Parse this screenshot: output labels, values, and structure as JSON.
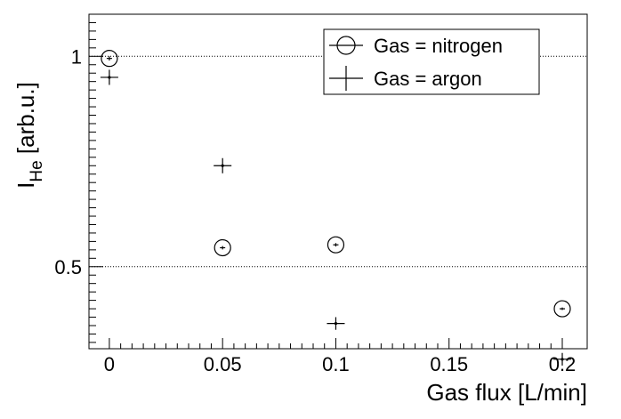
{
  "chart_data": {
    "type": "scatter",
    "title": "",
    "xlabel": "Gas flux [L/min]",
    "ylabel": {
      "main": "I",
      "sub": "He",
      "unit": " [arb.u.]"
    },
    "xlim": [
      -0.009,
      0.211
    ],
    "ylim": [
      0.305,
      1.1
    ],
    "x_ticks": [
      0,
      0.05,
      0.1,
      0.15,
      0.2
    ],
    "x_tick_labels": [
      "0",
      "0.05",
      "0.1",
      "0.15",
      "0.2"
    ],
    "y_ticks": [
      0.5,
      1
    ],
    "y_tick_labels": [
      "0.5",
      "1"
    ],
    "grid_y": [
      0.5,
      1.0
    ],
    "legend_position": "top-right",
    "series": [
      {
        "name": "Gas = nitrogen",
        "marker": "open-circle",
        "x": [
          0,
          0.05,
          0.1,
          0.2
        ],
        "y": [
          0.995,
          0.545,
          0.552,
          0.4
        ],
        "yerr": [
          0.005,
          0.004,
          0.004,
          0.003
        ]
      },
      {
        "name": "Gas = argon",
        "marker": "cross",
        "x": [
          0,
          0.05,
          0.1,
          0.2
        ],
        "y": [
          0.95,
          0.74,
          0.365,
          0.28
        ],
        "yerr": [
          0.018,
          0.018,
          0.015,
          0.015
        ]
      }
    ]
  }
}
